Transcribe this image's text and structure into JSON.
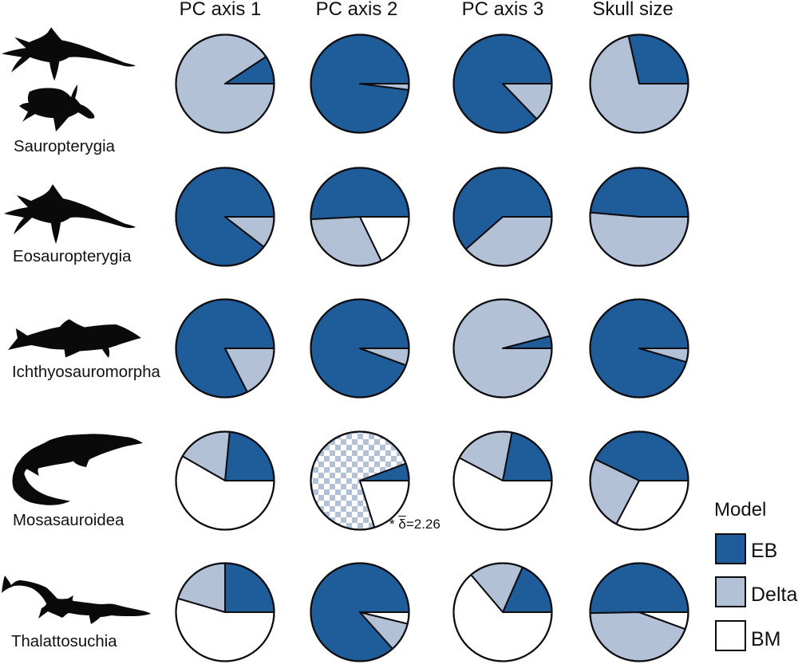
{
  "figure": {
    "background": "#ffffff",
    "description": "Grid of pie charts of relative model support (EB, Delta, BM) per marine reptile clade and trait"
  },
  "colors": {
    "EB": "#1f5c9a",
    "Delta": "#b2c1d5",
    "BM": "#ffffff",
    "outline": "#0d0d12",
    "text": "#111111"
  },
  "legend": {
    "title": "Model",
    "entries": [
      {
        "label": "EB",
        "color": "#1f5c9a"
      },
      {
        "label": "Delta",
        "color": "#b2c1d5"
      },
      {
        "label": "BM",
        "color": "#ffffff"
      }
    ]
  },
  "chart_data": {
    "type": "pie",
    "layout": "5 rows (clades) x 4 columns (traits), slices start at 3 o'clock and run counterclockwise in order EB, Delta, BM",
    "columns": [
      "PC axis 1",
      "PC axis 2",
      "PC axis 3",
      "Skull size"
    ],
    "rows": [
      {
        "taxon": "Sauropterygia",
        "silhouettes": [
          "plesiosaur",
          "sea-turtle"
        ],
        "pies": [
          {
            "column": "PC axis 1",
            "slices": {
              "EB": 0.093,
              "Delta": 0.907,
              "BM": 0
            }
          },
          {
            "column": "PC axis 2",
            "slices": {
              "EB": 0.98,
              "Delta": 0.02,
              "BM": 0
            }
          },
          {
            "column": "PC axis 3",
            "slices": {
              "EB": 0.872,
              "Delta": 0.128,
              "BM": 0
            }
          },
          {
            "column": "Skull size",
            "slices": {
              "EB": 0.285,
              "Delta": 0.715,
              "BM": 0
            }
          }
        ]
      },
      {
        "taxon": "Eosauropterygia",
        "silhouettes": [
          "plesiosaur"
        ],
        "pies": [
          {
            "column": "PC axis 1",
            "slices": {
              "EB": 0.895,
              "Delta": 0.105,
              "BM": 0
            }
          },
          {
            "column": "PC axis 2",
            "slices": {
              "EB": 0.508,
              "Delta": 0.314,
              "BM": 0.178
            }
          },
          {
            "column": "PC axis 3",
            "slices": {
              "EB": 0.615,
              "Delta": 0.385,
              "BM": 0
            }
          },
          {
            "column": "Skull size",
            "slices": {
              "EB": 0.486,
              "Delta": 0.514,
              "BM": 0
            }
          }
        ]
      },
      {
        "taxon": "Ichthyosauromorpha",
        "silhouettes": [
          "ichthyosaur"
        ],
        "pies": [
          {
            "column": "PC axis 1",
            "slices": {
              "EB": 0.825,
              "Delta": 0.175,
              "BM": 0
            }
          },
          {
            "column": "PC axis 2",
            "slices": {
              "EB": 0.944,
              "Delta": 0.056,
              "BM": 0
            }
          },
          {
            "column": "PC axis 3",
            "slices": {
              "EB": 0.041,
              "Delta": 0.959,
              "BM": 0
            }
          },
          {
            "column": "Skull size",
            "slices": {
              "EB": 0.955,
              "Delta": 0.045,
              "BM": 0
            }
          }
        ]
      },
      {
        "taxon": "Mosasauroidea",
        "silhouettes": [
          "mosasaur"
        ],
        "pies": [
          {
            "column": "PC axis 1",
            "slices": {
              "EB": 0.235,
              "Delta": 0.182,
              "BM": 0.583
            }
          },
          {
            "column": "PC axis 2",
            "slices": {
              "EB": 0.057,
              "Delta": 0.741,
              "BM": 0.202
            },
            "delta_pattern": "checker",
            "annotation": "* δ̄=2.26"
          },
          {
            "column": "PC axis 3",
            "slices": {
              "EB": 0.22,
              "Delta": 0.203,
              "BM": 0.577
            }
          },
          {
            "column": "Skull size",
            "slices": {
              "EB": 0.428,
              "Delta": 0.245,
              "BM": 0.327
            }
          }
        ]
      },
      {
        "taxon": "Thalattosuchia",
        "silhouettes": [
          "thalattosuchian-crocodylomorph"
        ],
        "pies": [
          {
            "column": "PC axis 1",
            "slices": {
              "EB": 0.25,
              "Delta": 0.205,
              "BM": 0.545
            }
          },
          {
            "column": "PC axis 2",
            "slices": {
              "EB": 0.866,
              "Delta": 0.096,
              "BM": 0.038
            }
          },
          {
            "column": "PC axis 3",
            "slices": {
              "EB": 0.184,
              "Delta": 0.178,
              "BM": 0.638
            }
          },
          {
            "column": "Skull size",
            "slices": {
              "EB": 0.503,
              "Delta": 0.441,
              "BM": 0.056
            }
          }
        ]
      }
    ]
  }
}
